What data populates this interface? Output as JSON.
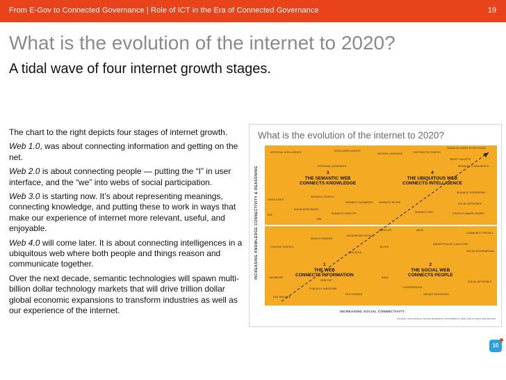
{
  "header": {
    "breadcrumb": "From E-Gov to Connected Governance | Role of ICT in the Era of Connected Governance",
    "page_number": "19"
  },
  "title": "What is the evolution of the internet to 2020?",
  "subtitle": "A tidal wave of four internet growth stages.",
  "body": {
    "p1": "The chart to the right depicts four stages of internet growth.",
    "p2_label": "Web 1.0",
    "p2_text": ", was about connecting information and getting on the net.",
    "p3_label": "Web 2.0",
    "p3_text": " is about connecting people — putting the “I” in user interface, and the “we” into webs of social participation.",
    "p4_label": "Web 3.0",
    "p4_text": " is starting now. It’s about representing meanings, connecting knowledge, and putting these to work in ways that make our experience of internet more relevant, useful, and enjoyable.",
    "p5_label": "Web 4.0",
    "p5_text": " will come later. It is about connecting intelligences in a ubiquitous web where both people and things reason and communicate together.",
    "p6": "Over the next decade, semantic technologies will spawn multi-billion dollar technology markets that will drive trillion dollar global economic expansions to transform industries as well as our experience of the internet."
  },
  "chart": {
    "title": "What is the evolution of the internet to 2020?",
    "y_axis": "INCREASING KNOWLEDGE CONNECTIVITY & REASONING",
    "x_axis": "INCREASING SOCIAL CONNECTIVITY",
    "credit": "SOURCE: NOVA SPIVACK, RADAR NETWORKS; JOHN BRESLIN, DERI & MILLS DAVIS, PROJECT10X",
    "q3": {
      "num": "3",
      "line1": "THE SEMANTIC WEB",
      "line2": "CONNECTS KNOWLEDGE"
    },
    "q4": {
      "num": "4",
      "line1": "THE UBIQUITOUS WEB",
      "line2": "CONNECTS INTELLIGENCE"
    },
    "q1": {
      "num": "1",
      "line1": "THE WEB",
      "line2": "CONNECTS INFORMATION"
    },
    "q2": {
      "num": "2",
      "line1": "THE SOCIAL WEB",
      "line2": "CONNECTS PEOPLE"
    },
    "terms": {
      "t1": "ARTIFICIAL INTELLIGENCE",
      "t2": "INTELLIGENT AGENTS",
      "t3": "PERSONAL ASSISTANTS",
      "t4": "ONTOLOGIES",
      "t5": "SEMANTIC SEARCH",
      "t6": "SEMANTIC DATABASES",
      "t7": "KNOWLEDGE BASES",
      "t8": "RDF",
      "t9": "OWL",
      "t10": "SEMANTIC DESKTOP",
      "t11": "NATURAL LANGUAGE",
      "t12": "DISTRIBUTED SEARCH",
      "t13": "SMART GADGETS",
      "t14": "SEMANTIC AGENT ECOSYSTEMS",
      "t15": "SEMANTIC COMMUNITIES",
      "t16": "SEMANTIC ENTERPRISE",
      "t17": "SEMANTIC BLOGS",
      "t18": "SEMANTIC WIKI",
      "t19": "CONTEXT-AWARE SHARES",
      "t20": "SEARCH ENGINES",
      "t21": "CONTENT PORTALS",
      "t22": "ENTERPRISE PORTALS",
      "t23": "WEB SITES",
      "t24": "DATABASES",
      "t25": "DESKTOP",
      "t26": "PUBLISH & SUBSCRIBE",
      "t27": "FILE SERVERS",
      "t28": "FILE SHARING",
      "t29": "MASH-UPS",
      "t30": "WIKIS",
      "t31": "COMMUNITY PORTALS",
      "t32": "BLOGS",
      "t33": "MARKETPLACES & AUCTIONS",
      "t34": "SOCIAL BOOKMARKING",
      "t35": "EMAIL",
      "t36": "CONFERENCING",
      "t37": "INSTANT MESSAGING",
      "t38": "SOCIAL NETWORKS"
    }
  },
  "logo": {
    "text": "10"
  }
}
